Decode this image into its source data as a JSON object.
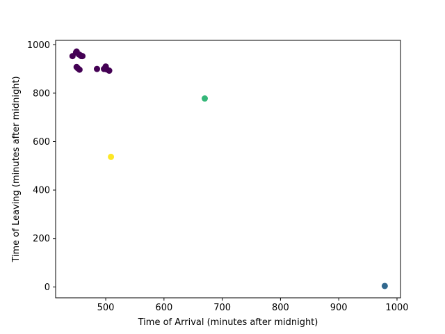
{
  "chart_data": {
    "type": "scatter",
    "title": "",
    "xlabel": "Time of Arrival (minutes after midnight)",
    "ylabel": "Time of Leaving (minutes after midnight)",
    "xlim": [
      414,
      1006
    ],
    "ylim": [
      -45,
      1018
    ],
    "xticks": [
      500,
      600,
      700,
      800,
      900,
      1000
    ],
    "yticks": [
      0,
      200,
      400,
      600,
      800,
      1000
    ],
    "grid": false,
    "legend": "none",
    "colors": {
      "cluster_0": "#440154",
      "cluster_1": "#31688e",
      "cluster_2": "#35b779",
      "cluster_3": "#fde725"
    },
    "points": [
      {
        "x": 443,
        "y": 953,
        "cluster": "cluster_0"
      },
      {
        "x": 449,
        "y": 968,
        "cluster": "cluster_0"
      },
      {
        "x": 450,
        "y": 972,
        "cluster": "cluster_0"
      },
      {
        "x": 454,
        "y": 960,
        "cluster": "cluster_0"
      },
      {
        "x": 456,
        "y": 957,
        "cluster": "cluster_0"
      },
      {
        "x": 458,
        "y": 953,
        "cluster": "cluster_0"
      },
      {
        "x": 460,
        "y": 953,
        "cluster": "cluster_0"
      },
      {
        "x": 450,
        "y": 908,
        "cluster": "cluster_0"
      },
      {
        "x": 452,
        "y": 903,
        "cluster": "cluster_0"
      },
      {
        "x": 455,
        "y": 897,
        "cluster": "cluster_0"
      },
      {
        "x": 485,
        "y": 900,
        "cluster": "cluster_0"
      },
      {
        "x": 497,
        "y": 900,
        "cluster": "cluster_0"
      },
      {
        "x": 500,
        "y": 910,
        "cluster": "cluster_0"
      },
      {
        "x": 502,
        "y": 898,
        "cluster": "cluster_0"
      },
      {
        "x": 506,
        "y": 893,
        "cluster": "cluster_0"
      },
      {
        "x": 979,
        "y": 4,
        "cluster": "cluster_1"
      },
      {
        "x": 670,
        "y": 778,
        "cluster": "cluster_2"
      },
      {
        "x": 509,
        "y": 537,
        "cluster": "cluster_3"
      }
    ]
  }
}
